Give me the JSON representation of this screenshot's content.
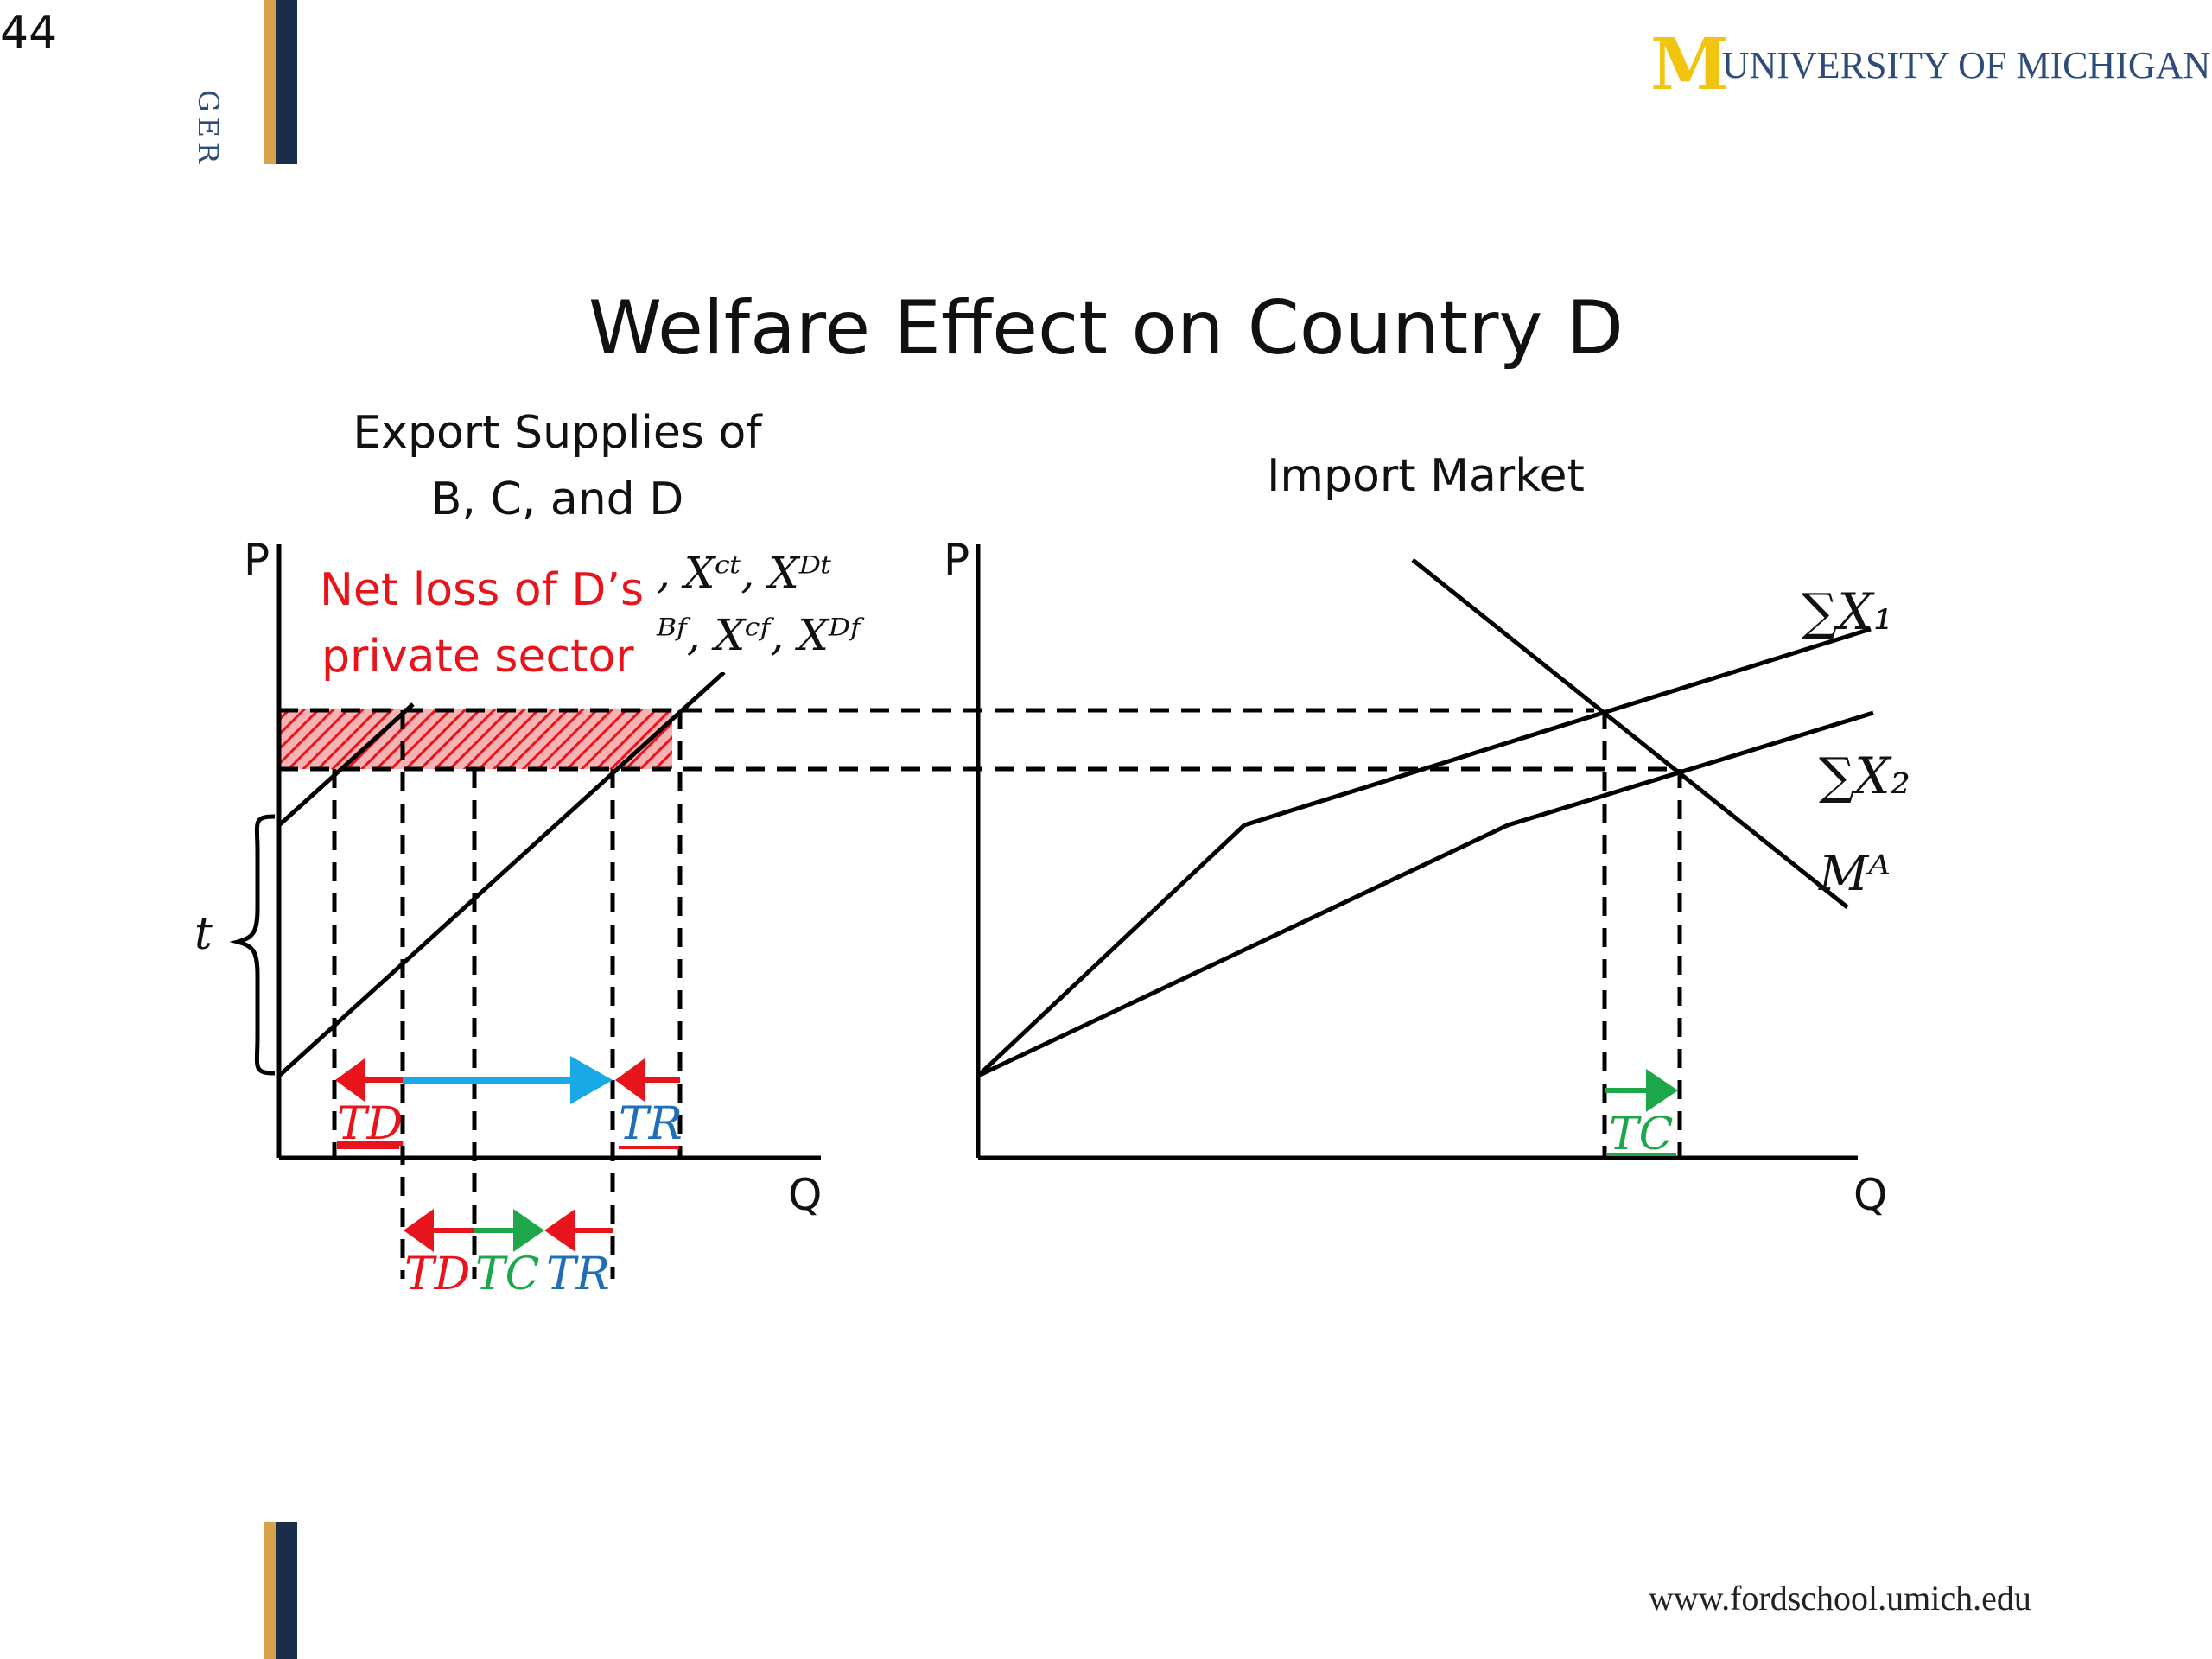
{
  "slide": {
    "number": "44",
    "side_label": "GER"
  },
  "logo": {
    "mark": "M",
    "text": "UNIVERSITY OF MICHIGAN"
  },
  "footer": {
    "url": "www.fordschool.umich.edu"
  },
  "title": "Welfare Effect on Country D",
  "left_panel": {
    "heading_line1": "Export Supplies of",
    "heading_line2": "B, C, and D",
    "axis_p": "P",
    "axis_q": "Q",
    "callout_line1": "Net loss of D’s",
    "callout_line2": "private sector",
    "curve_label_top": ", Xᶜᵗ, Xᴰᵗ",
    "curve_label_bottom": "ᴮᶠ, Xᶜᶠ, Xᴰᶠ",
    "tariff_label": "t",
    "arrow_labels": {
      "td": "TD",
      "tr": "TR",
      "tc": "TC"
    }
  },
  "right_panel": {
    "heading": "Import Market",
    "axis_p": "P",
    "axis_q": "Q",
    "sum_x1": "∑X₁",
    "sum_x2": "∑X₂",
    "import_demand": "Mᴬ",
    "arrow_label_tc": "TC"
  },
  "colors": {
    "red": "#e8141b",
    "blue": "#18a9e6",
    "green": "#1ea64b",
    "tr_text": "#1e6fb8",
    "gold": "#d8a24a",
    "navy": "#1a2e4a"
  }
}
